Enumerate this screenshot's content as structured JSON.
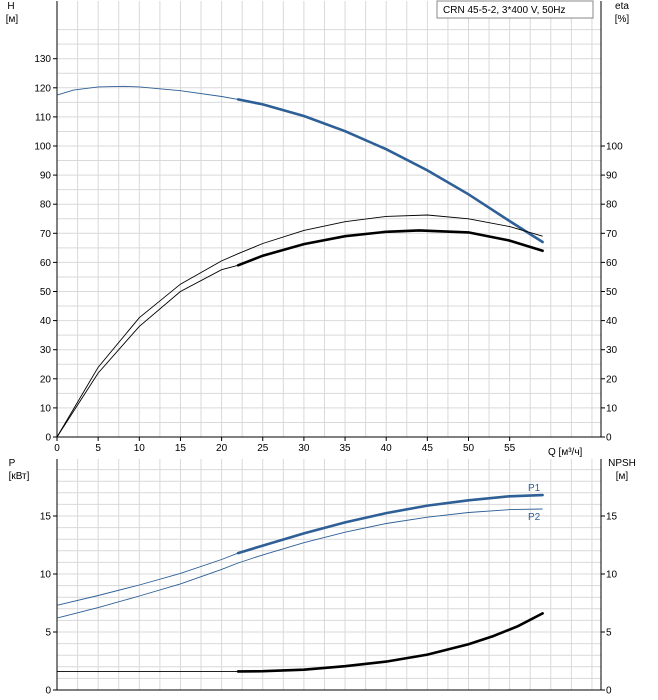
{
  "chart_data": [
    {
      "type": "line",
      "panel": "head-efficiency",
      "legend_box": "CRN 45-5-2, 3*400 V, 50Hz",
      "left_axis": {
        "name": "H",
        "unit": "[м]",
        "range": [
          0,
          140
        ],
        "ticks": [
          0,
          10,
          20,
          30,
          40,
          50,
          60,
          70,
          80,
          90,
          100,
          110,
          120,
          130
        ]
      },
      "right_axis": {
        "name": "eta",
        "unit": "[%]",
        "range": [
          0,
          140
        ],
        "ticks": [
          0,
          10,
          20,
          30,
          40,
          50,
          60,
          70,
          80,
          90,
          100
        ]
      },
      "x_axis": {
        "label": "Q [м³/ч]",
        "range": [
          0,
          65
        ],
        "ticks": [
          0,
          5,
          10,
          15,
          20,
          25,
          30,
          35,
          40,
          45,
          50,
          55
        ]
      },
      "grid": true,
      "series": [
        {
          "key": "H",
          "axis": "left",
          "color": "#2e5f96",
          "thin_x": [
            0,
            2,
            5,
            8,
            10,
            15,
            20,
            22
          ],
          "thin_y": [
            117.5,
            119.2,
            120.3,
            120.5,
            120.3,
            119,
            117,
            116
          ],
          "thick_x": [
            22,
            25,
            30,
            35,
            40,
            45,
            50,
            55,
            59
          ],
          "thick_y": [
            116,
            114.3,
            110.3,
            105.1,
            98.9,
            91.6,
            83.4,
            74.2,
            67
          ]
        },
        {
          "key": "eta_total",
          "axis": "right",
          "color": "#000000",
          "thin_x": [
            0,
            5,
            10,
            15,
            20,
            22
          ],
          "thin_y": [
            0,
            22,
            38,
            50,
            57.5,
            59
          ],
          "thick_x": [
            22,
            25,
            30,
            35,
            40,
            44,
            50,
            55,
            59
          ],
          "thick_y": [
            59,
            62.3,
            66.3,
            69,
            70.5,
            71,
            70.3,
            67.5,
            64
          ]
        },
        {
          "key": "eta_pump",
          "axis": "right",
          "color": "#000000",
          "thin_x": [
            0,
            5,
            10,
            15,
            20,
            22,
            25,
            30,
            35,
            40,
            45,
            50,
            55,
            59
          ],
          "thin_y": [
            0,
            24,
            41,
            52.5,
            60.5,
            63,
            66.5,
            71,
            74,
            75.8,
            76.3,
            75,
            72.3,
            69
          ]
        }
      ]
    },
    {
      "type": "line",
      "panel": "power-npsh",
      "left_axis": {
        "name": "P",
        "unit": "[кВт]",
        "range": [
          0,
          20
        ],
        "ticks": [
          0,
          5,
          10,
          15
        ]
      },
      "right_axis": {
        "name": "NPSH",
        "unit": "[м]",
        "range": [
          0,
          20
        ],
        "ticks": [
          0,
          5,
          10,
          15
        ]
      },
      "x_axis": {
        "range": [
          0,
          65
        ]
      },
      "grid": true,
      "series": [
        {
          "name": "P1",
          "axis": "left",
          "color": "#2e5f96",
          "thin_x": [
            0,
            5,
            10,
            15,
            20,
            22
          ],
          "thin_y": [
            7.3,
            8.15,
            9.05,
            10.05,
            11.25,
            11.8
          ],
          "thick_x": [
            22,
            25,
            30,
            35,
            40,
            45,
            50,
            55,
            59
          ],
          "thick_y": [
            11.8,
            12.45,
            13.5,
            14.45,
            15.25,
            15.9,
            16.35,
            16.7,
            16.8
          ]
        },
        {
          "name": "P2",
          "axis": "left",
          "color": "#2e5f96",
          "thin_x": [
            0,
            5,
            10,
            15,
            20,
            22,
            25,
            30,
            35,
            40,
            45,
            50,
            55,
            59
          ],
          "thin_y": [
            6.2,
            7.1,
            8.1,
            9.15,
            10.4,
            10.95,
            11.65,
            12.7,
            13.6,
            14.35,
            14.9,
            15.3,
            15.55,
            15.6
          ]
        },
        {
          "key": "NPSH",
          "axis": "right",
          "color": "#000000",
          "thin_x": [
            0,
            22
          ],
          "thin_y": [
            1.6,
            1.6
          ],
          "thick_x": [
            22,
            25,
            30,
            35,
            40,
            45,
            50,
            53,
            56,
            59
          ],
          "thick_y": [
            1.6,
            1.62,
            1.75,
            2.05,
            2.45,
            3.05,
            3.95,
            4.65,
            5.5,
            6.6
          ]
        }
      ]
    }
  ]
}
